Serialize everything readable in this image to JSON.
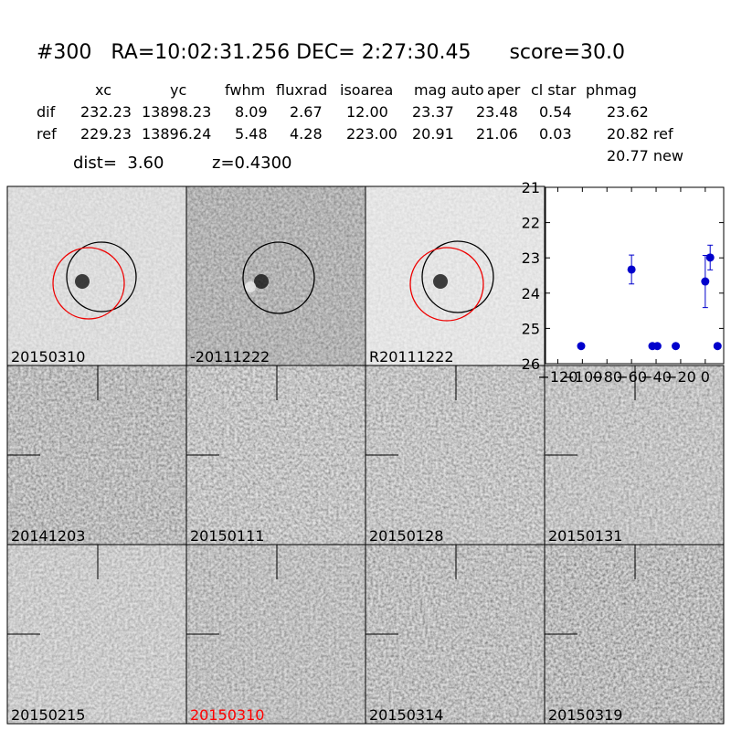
{
  "header": {
    "title": "#300   RA=10:02:31.256 DEC= 2:27:30.45      score=30.0",
    "dist": "dist=  3.60",
    "z": "z=0.4300"
  },
  "table": {
    "columns": [
      "xc",
      "yc",
      "fwhm",
      "fluxrad",
      "isoarea",
      "mag auto",
      "aper",
      "cl star",
      "phmag"
    ],
    "rows": [
      {
        "label": "dif",
        "cells": [
          "232.23",
          "13898.23",
          "8.09",
          "2.67",
          "12.00",
          "23.37",
          "23.48",
          "0.54",
          "23.62"
        ]
      },
      {
        "label": "ref",
        "cells": [
          "229.23",
          "13896.24",
          "5.48",
          "4.28",
          "223.00",
          "20.91",
          "21.06",
          "0.03",
          "20.82 ref"
        ]
      }
    ],
    "extra": "20.77 new"
  },
  "stamps": [
    {
      "label": "20150310"
    },
    {
      "label": "-20111222"
    },
    {
      "label": "R20111222"
    },
    {
      "label": "20141203"
    },
    {
      "label": "20150111"
    },
    {
      "label": "20150128"
    },
    {
      "label": "20150131"
    },
    {
      "label": "20150215"
    },
    {
      "label": "20150310",
      "color": "#ff0000"
    },
    {
      "label": "20150314"
    },
    {
      "label": "20150319"
    }
  ],
  "chart_data": {
    "type": "errorbar",
    "x": [
      -101,
      -60,
      -43,
      -39,
      -24,
      0,
      4,
      10
    ],
    "series": [
      {
        "color": "#0000cc",
        "values": [
          25.5,
          23.33,
          25.5,
          25.5,
          25.5,
          23.67,
          22.99,
          25.5
        ],
        "errors": [
          0.05,
          0.41,
          0.03,
          0.03,
          0.03,
          0.74,
          0.35,
          0.03
        ]
      }
    ],
    "xlim": [
      -130,
      15
    ],
    "xticks": [
      {
        "value": -120,
        "label": "−120"
      },
      {
        "value": -100,
        "label": "−100"
      },
      {
        "value": -80,
        "label": "−80"
      },
      {
        "value": -60,
        "label": "−60"
      },
      {
        "value": -40,
        "label": "−40"
      },
      {
        "value": -20,
        "label": "−20"
      },
      0
    ],
    "ylim": [
      26,
      21
    ],
    "yticks": [
      21,
      22,
      23,
      24,
      25,
      26
    ]
  }
}
